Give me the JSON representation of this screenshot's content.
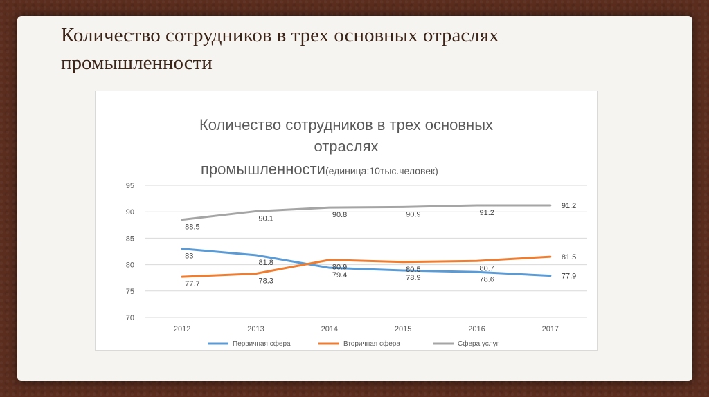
{
  "slide": {
    "title_line1": "Количество сотрудников в трех основных отраслях",
    "title_line2": "промышленности"
  },
  "colors": {
    "primary": "#5b9bd5",
    "secondary": "#ed7d31",
    "services": "#a5a5a5"
  },
  "chart_data": {
    "type": "line",
    "title_line1": "Количество сотрудников в трех основных",
    "title_line2": "отраслях",
    "title_line3_main": "промышленности",
    "title_line3_unit": "(единица:10тыс.человек)",
    "categories": [
      "2012",
      "2013",
      "2014",
      "2015",
      "2016",
      "2017"
    ],
    "ylim": [
      70,
      95
    ],
    "yticks": [
      70,
      75,
      80,
      85,
      90,
      95
    ],
    "grid": true,
    "legend_position": "bottom",
    "series": [
      {
        "name": "Первичная сфера",
        "color": "#5b9bd5",
        "values": [
          83,
          81.8,
          79.4,
          78.9,
          78.6,
          77.9
        ],
        "labels": [
          "83",
          "81.8",
          "79.4",
          "78.9",
          "78.6",
          "77.9"
        ]
      },
      {
        "name": "Вторичная сфера",
        "color": "#ed7d31",
        "values": [
          77.7,
          78.3,
          80.9,
          80.5,
          80.7,
          81.5
        ],
        "labels": [
          "77.7",
          "78.3",
          "80.9",
          "80.5",
          "80.7",
          "81.5"
        ]
      },
      {
        "name": "Сфера услуг",
        "color": "#a5a5a5",
        "values": [
          88.5,
          90.1,
          90.8,
          90.9,
          91.2,
          91.2
        ],
        "labels": [
          "88.5",
          "90.1",
          "90.8",
          "90.9",
          "91.2",
          "91.2"
        ]
      }
    ]
  }
}
